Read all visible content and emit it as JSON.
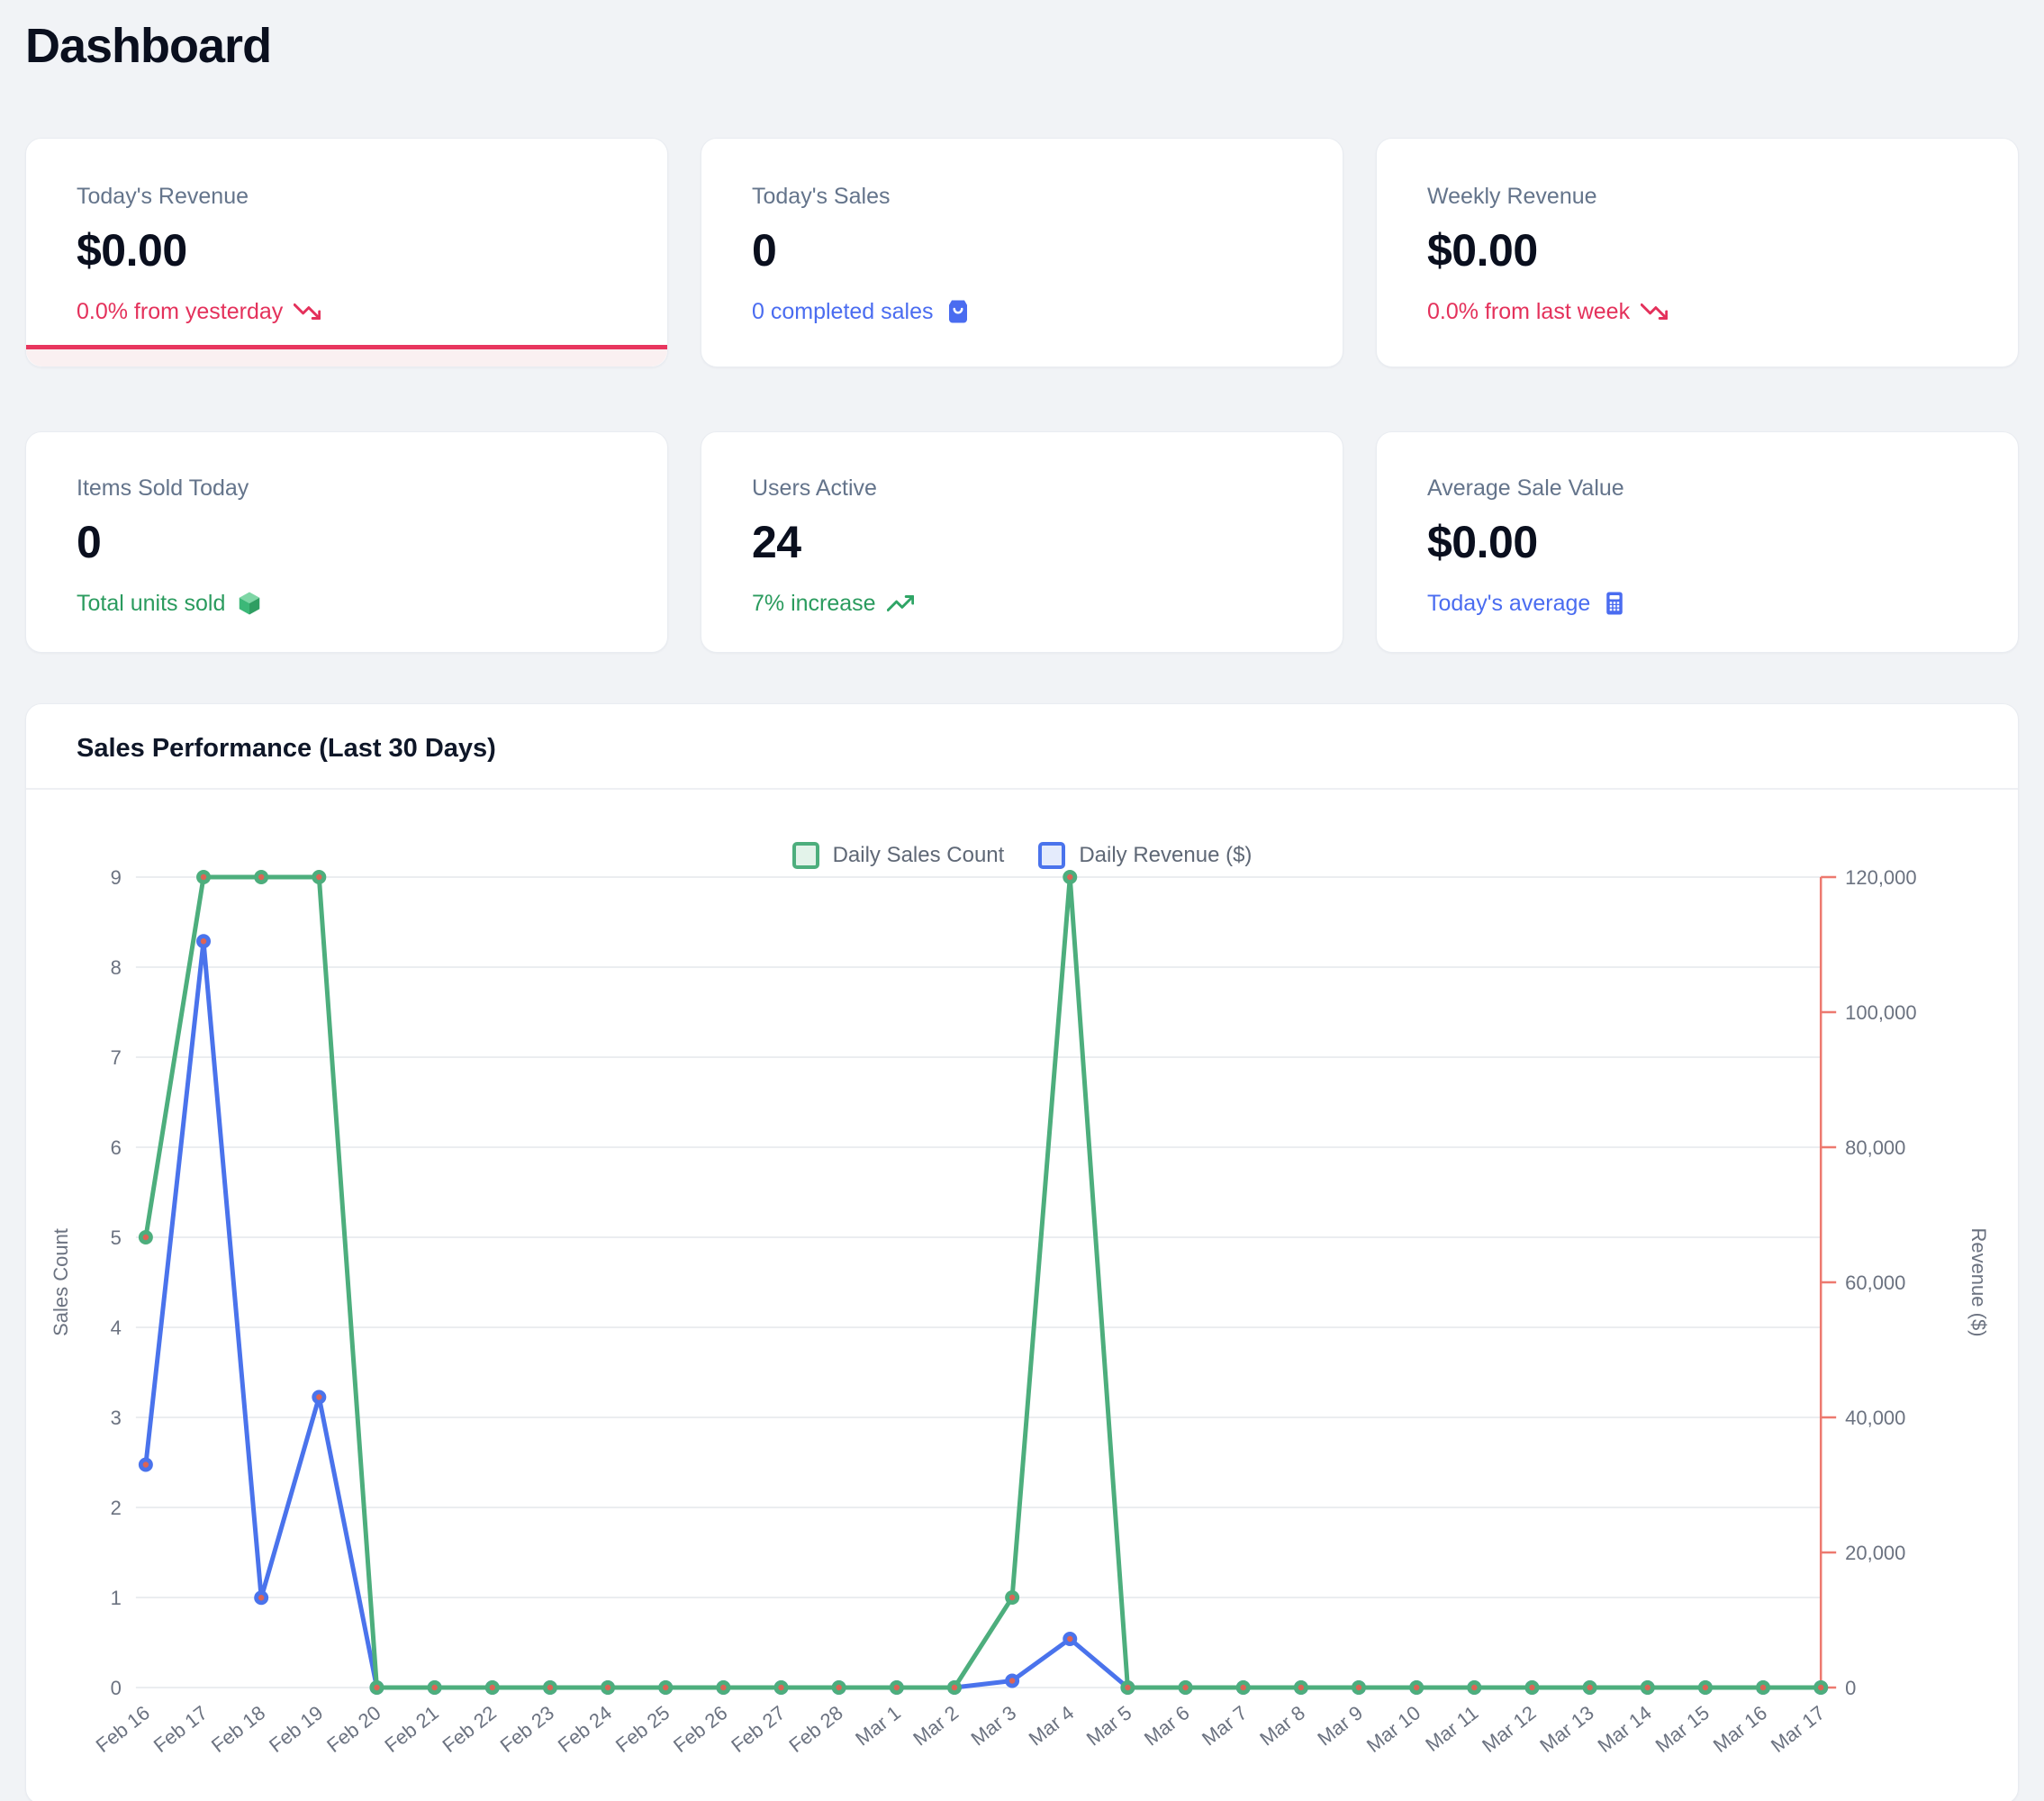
{
  "page": {
    "title": "Dashboard"
  },
  "stats": [
    {
      "label": "Today's Revenue",
      "value": "$0.00",
      "sub": "0.0% from yesterday",
      "icon": "trending-down-icon",
      "tone": "red",
      "accent_bar": true
    },
    {
      "label": "Today's Sales",
      "value": "0",
      "sub": "0 completed sales",
      "icon": "shopping-bag-icon",
      "tone": "blue",
      "accent_bar": false
    },
    {
      "label": "Weekly Revenue",
      "value": "$0.00",
      "sub": "0.0% from last week",
      "icon": "trending-down-icon",
      "tone": "red",
      "accent_bar": false
    },
    {
      "label": "Items Sold Today",
      "value": "0",
      "sub": "Total units sold",
      "icon": "package-icon",
      "tone": "green",
      "accent_bar": false
    },
    {
      "label": "Users Active",
      "value": "24",
      "sub": "7% increase",
      "icon": "trending-up-icon",
      "tone": "green",
      "accent_bar": false
    },
    {
      "label": "Average Sale Value",
      "value": "$0.00",
      "sub": "Today's average",
      "icon": "calculator-icon",
      "tone": "blue",
      "accent_bar": false
    }
  ],
  "chart": {
    "title": "Sales Performance (Last 30 Days)"
  },
  "chart_data": {
    "type": "line",
    "title": "Sales Performance (Last 30 Days)",
    "categories": [
      "Feb 16",
      "Feb 17",
      "Feb 18",
      "Feb 19",
      "Feb 20",
      "Feb 21",
      "Feb 22",
      "Feb 23",
      "Feb 24",
      "Feb 25",
      "Feb 26",
      "Feb 27",
      "Feb 28",
      "Mar 1",
      "Mar 2",
      "Mar 3",
      "Mar 4",
      "Mar 5",
      "Mar 6",
      "Mar 7",
      "Mar 8",
      "Mar 9",
      "Mar 10",
      "Mar 11",
      "Mar 12",
      "Mar 13",
      "Mar 14",
      "Mar 15",
      "Mar 16",
      "Mar 17"
    ],
    "series": [
      {
        "name": "Daily Sales Count",
        "axis": "left",
        "color": "#4dae7d",
        "swatch_fill": "#e3f3ea",
        "values": [
          5,
          9,
          9,
          9,
          0,
          0,
          0,
          0,
          0,
          0,
          0,
          0,
          0,
          0,
          0,
          1,
          9,
          0,
          0,
          0,
          0,
          0,
          0,
          0,
          0,
          0,
          0,
          0,
          0,
          0
        ]
      },
      {
        "name": "Daily Revenue ($)",
        "axis": "right",
        "color": "#4a73ec",
        "swatch_fill": "#e4ebfc",
        "values": [
          33000,
          110500,
          13300,
          43000,
          0,
          0,
          0,
          0,
          0,
          0,
          0,
          0,
          0,
          0,
          0,
          1000,
          7200,
          0,
          0,
          0,
          0,
          0,
          0,
          0,
          0,
          0,
          0,
          0,
          0,
          0
        ]
      }
    ],
    "left_axis": {
      "title": "Sales Count",
      "min": 0,
      "max": 9,
      "ticks": [
        0,
        1,
        2,
        3,
        4,
        5,
        6,
        7,
        8,
        9
      ]
    },
    "right_axis": {
      "title": "Revenue ($)",
      "min": 0,
      "max": 120000,
      "ticks": [
        0,
        20000,
        40000,
        60000,
        80000,
        100000,
        120000
      ],
      "color": "#ed796f"
    },
    "legend_position": "top",
    "grid": true,
    "gridline_color": "#ebedf0",
    "marker_center_color": "#dd6455",
    "x_label_rotation": -38
  }
}
